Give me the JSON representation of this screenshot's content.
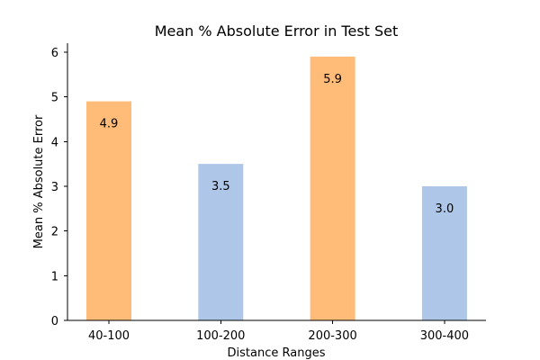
{
  "chart_data": {
    "type": "bar",
    "title": "Mean % Absolute Error in Test Set",
    "xlabel": "Distance Ranges",
    "ylabel": "Mean % Absolute Error",
    "categories": [
      "40-100",
      "100-200",
      "200-300",
      "300-400"
    ],
    "values": [
      4.9,
      3.5,
      5.9,
      3.0
    ],
    "data_labels": [
      "4.9",
      "3.5",
      "5.9",
      "3.0"
    ],
    "bar_colors": [
      "#FFBB78",
      "#AEC7E8",
      "#FFBB78",
      "#AEC7E8"
    ],
    "ylim": [
      0,
      6.2
    ],
    "yticks": [
      0,
      1,
      2,
      3,
      4,
      5,
      6
    ],
    "ytick_labels": [
      "0",
      "1",
      "2",
      "3",
      "4",
      "5",
      "6"
    ],
    "grid": false,
    "legend": "none"
  }
}
